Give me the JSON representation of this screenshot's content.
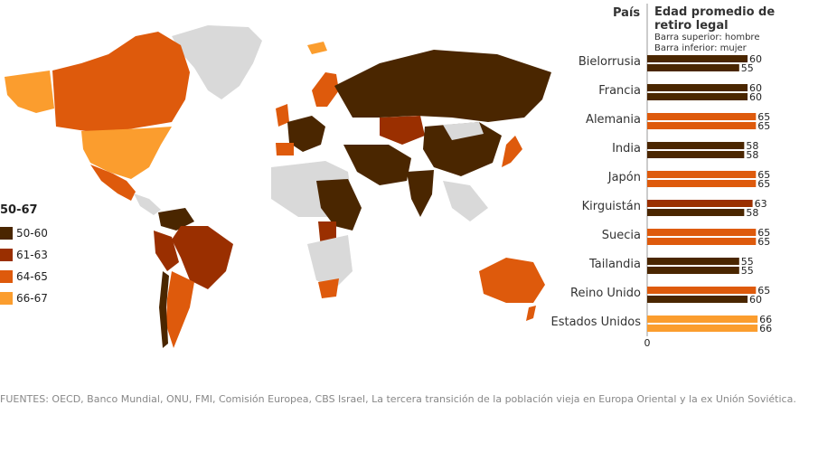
{
  "legend": {
    "title": "50-67",
    "items": [
      {
        "label": "50-60",
        "color": "#4a2600"
      },
      {
        "label": "61-63",
        "color": "#9a2f00"
      },
      {
        "label": "64-65",
        "color": "#de5a0c"
      },
      {
        "label": "66-67",
        "color": "#fb9d2e"
      }
    ]
  },
  "header": {
    "country_col": "País",
    "title": "Edad promedio de retiro legal",
    "sub1": "Barra superior: hombre",
    "sub2": "Barra inferior: mujer"
  },
  "sources": "FUENTES: OECD, Banco Mundial, ONU, FMI, Comisión Europea, CBS Israel, La tercera transición de la población vieja en Europa Oriental y la ex Unión Soviética.",
  "map": {
    "unmapped_color": "#d9d9d9"
  },
  "chart_data": {
    "type": "bar",
    "orientation": "horizontal",
    "title": "Edad promedio de retiro legal",
    "xlim": [
      0,
      67
    ],
    "x_tick_labels": [
      "0"
    ],
    "categories": [
      "Bielorrusia",
      "Francia",
      "Alemania",
      "India",
      "Japón",
      "Kirguistán",
      "Suecia",
      "Tailandia",
      "Reino Unido",
      "Estados Unidos"
    ],
    "series": [
      {
        "name": "hombre",
        "values": [
          60,
          60,
          65,
          58,
          65,
          63,
          65,
          55,
          65,
          66
        ]
      },
      {
        "name": "mujer",
        "values": [
          55,
          60,
          65,
          58,
          65,
          58,
          65,
          55,
          60,
          66
        ]
      }
    ]
  }
}
